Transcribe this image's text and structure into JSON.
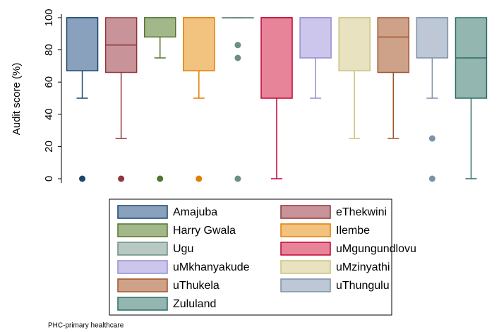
{
  "chart_data": {
    "type": "box",
    "y_label": "Audit score (%)",
    "ylim": [
      0,
      100
    ],
    "yticks": [
      0,
      20,
      40,
      60,
      80,
      100
    ],
    "grid": false,
    "legend_position": "bottom",
    "footnote": "PHC-primary healthcare",
    "series": [
      {
        "name": "Amajuba",
        "color": "#1a476f",
        "fill": "#8aa1bd",
        "whisker_low": 50,
        "q1": 67,
        "median": 100,
        "q3": 100,
        "whisker_high": 100,
        "outliers": [
          0
        ]
      },
      {
        "name": "eThekwini",
        "color": "#90353b",
        "fill": "#c89499",
        "whisker_low": 25,
        "q1": 66,
        "median": 83,
        "q3": 100,
        "whisker_high": 100,
        "outliers": [
          0
        ]
      },
      {
        "name": "Harry Gwala",
        "color": "#55752f",
        "fill": "#a3b88a",
        "whisker_low": 75,
        "q1": 88,
        "median": 100,
        "q3": 100,
        "whisker_high": 100,
        "outliers": [
          0
        ]
      },
      {
        "name": "Ilembe",
        "color": "#e37e00",
        "fill": "#f2c27f",
        "whisker_low": 50,
        "q1": 67,
        "median": 100,
        "q3": 100,
        "whisker_high": 100,
        "outliers": [
          0
        ]
      },
      {
        "name": "Ugu",
        "color": "#6e8e84",
        "fill": "#b8c9c4",
        "whisker_low": 100,
        "q1": 100,
        "median": 100,
        "q3": 100,
        "whisker_high": 100,
        "outliers": [
          83,
          75,
          0
        ]
      },
      {
        "name": "uMgungundlovu",
        "color": "#c10534",
        "fill": "#e8849a",
        "whisker_low": 0,
        "q1": 50,
        "median": 100,
        "q3": 100,
        "whisker_high": 100,
        "outliers": []
      },
      {
        "name": "uMkhanyakude",
        "color": "#938dd2",
        "fill": "#cdc6ec",
        "whisker_low": 50,
        "q1": 75,
        "median": 100,
        "q3": 100,
        "whisker_high": 100,
        "outliers": []
      },
      {
        "name": "uMzinyathi",
        "color": "#cac27e",
        "fill": "#e8e2c0",
        "whisker_low": 25,
        "q1": 67,
        "median": 100,
        "q3": 100,
        "whisker_high": 100,
        "outliers": []
      },
      {
        "name": "uThukela",
        "color": "#a0522d",
        "fill": "#cea288",
        "whisker_low": 25,
        "q1": 66,
        "median": 88,
        "q3": 100,
        "whisker_high": 100,
        "outliers": []
      },
      {
        "name": "uThungulu",
        "color": "#7b92a8",
        "fill": "#bdc7d6",
        "whisker_low": 50,
        "q1": 75,
        "median": 100,
        "q3": 100,
        "whisker_high": 100,
        "outliers": [
          25,
          0
        ]
      },
      {
        "name": "Zululand",
        "color": "#2d6d66",
        "fill": "#93b6b0",
        "whisker_low": 0,
        "q1": 50,
        "median": 75,
        "q3": 100,
        "whisker_high": 100,
        "outliers": []
      }
    ]
  }
}
